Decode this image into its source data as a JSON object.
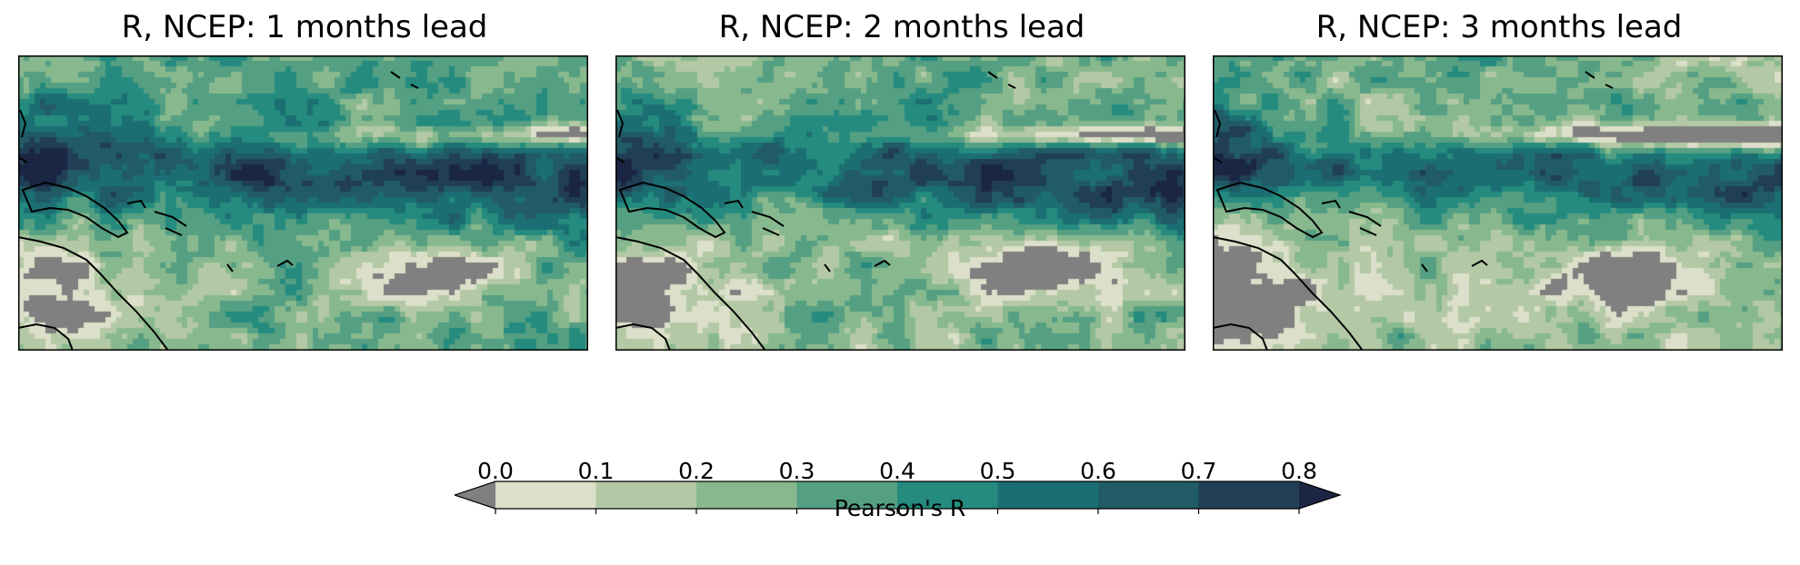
{
  "panels": [
    {
      "title": "R, NCEP: 1 months lead",
      "lead_months": 1
    },
    {
      "title": "R, NCEP: 2 months lead",
      "lead_months": 2
    },
    {
      "title": "R, NCEP: 3 months lead",
      "lead_months": 3
    }
  ],
  "colorbar": {
    "label": "Pearson's R",
    "ticks": [
      "0.0",
      "0.1",
      "0.2",
      "0.3",
      "0.4",
      "0.5",
      "0.6",
      "0.7",
      "0.8"
    ],
    "extend": "both",
    "under_color": "#808080",
    "over_color": "#1b2645",
    "colors": [
      "#dcdfc9",
      "#b3c9a5",
      "#88b98e",
      "#559f82",
      "#248b7e",
      "#1b6f72",
      "#215b65",
      "#203f56",
      "#1b2645"
    ]
  }
}
